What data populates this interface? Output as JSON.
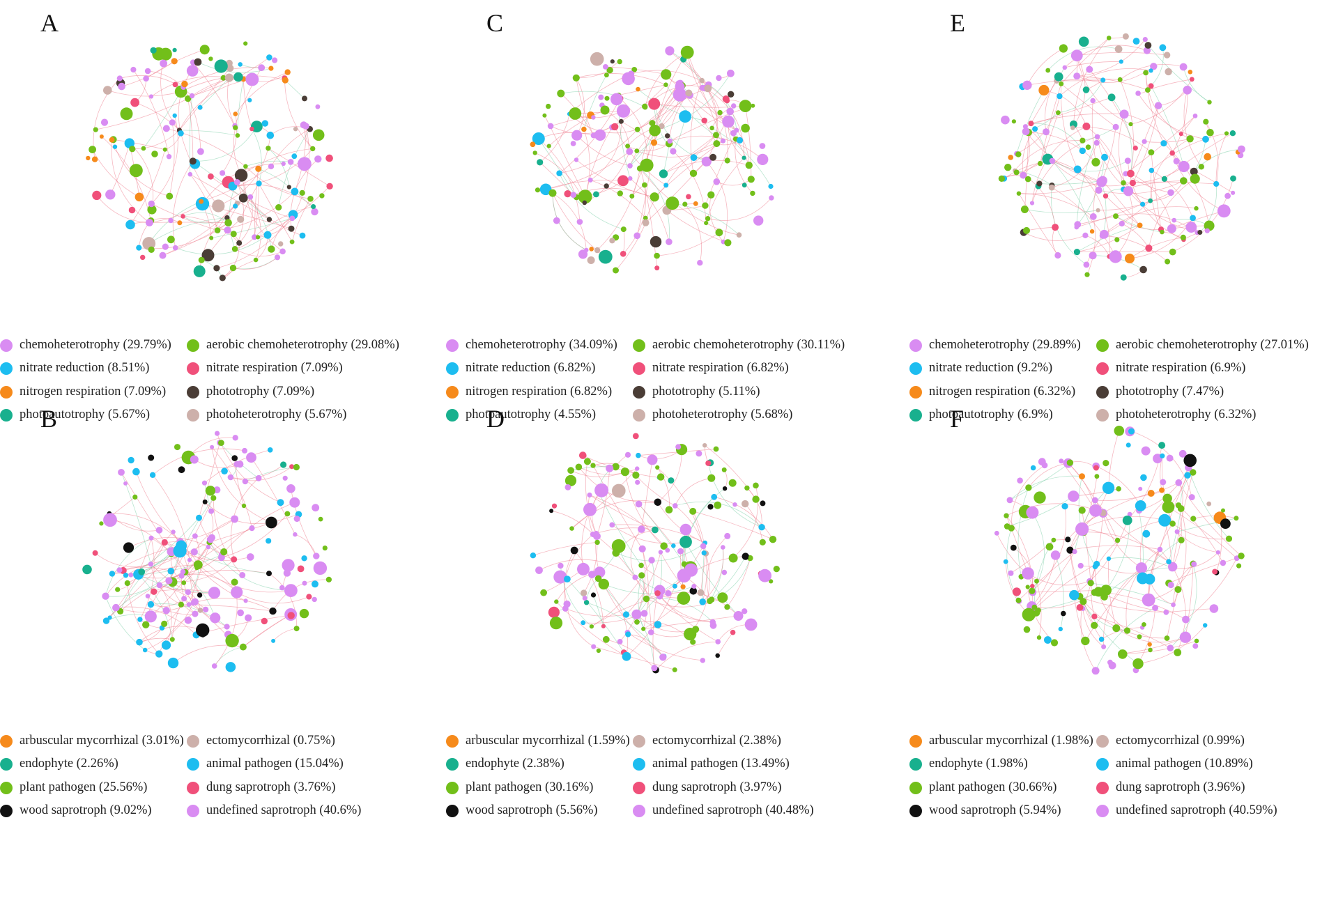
{
  "figure": {
    "colors": {
      "edge_pos": "#ee7d8e",
      "edge_neg": "#7fcfaa"
    },
    "panels": [
      {
        "id": "A",
        "letter": "A",
        "seed": 11,
        "legend": [
          {
            "label": "chemoheterotrophy (29.79%)",
            "color": "#d98cf2",
            "share": 29.79
          },
          {
            "label": "aerobic chemoheterotrophy (29.08%)",
            "color": "#72bf1a",
            "share": 29.08
          },
          {
            "label": "nitrate reduction (8.51%)",
            "color": "#1dbdf0",
            "share": 8.51
          },
          {
            "label": "nitrate respiration (7.09%)",
            "color": "#f0507a",
            "share": 7.09
          },
          {
            "label": "nitrogen respiration (7.09%)",
            "color": "#f68a1b",
            "share": 7.09
          },
          {
            "label": "phototrophy (7.09%)",
            "color": "#4a3d36",
            "share": 7.09
          },
          {
            "label": "photoautotrophy (5.67%)",
            "color": "#18b08e",
            "share": 5.67
          },
          {
            "label": "photoheterotrophy (5.67%)",
            "color": "#cdb0aa",
            "share": 5.67
          }
        ]
      },
      {
        "id": "C",
        "letter": "C",
        "seed": 23,
        "legend": [
          {
            "label": "chemoheterotrophy (34.09%)",
            "color": "#d98cf2",
            "share": 34.09
          },
          {
            "label": "aerobic chemoheterotrophy (30.11%)",
            "color": "#72bf1a",
            "share": 30.11
          },
          {
            "label": "nitrate reduction (6.82%)",
            "color": "#1dbdf0",
            "share": 6.82
          },
          {
            "label": "nitrate respiration (6.82%)",
            "color": "#f0507a",
            "share": 6.82
          },
          {
            "label": "nitrogen respiration (6.82%)",
            "color": "#f68a1b",
            "share": 6.82
          },
          {
            "label": "phototrophy (5.11%)",
            "color": "#4a3d36",
            "share": 5.11
          },
          {
            "label": "photoautotrophy (4.55%)",
            "color": "#18b08e",
            "share": 4.55
          },
          {
            "label": "photoheterotrophy (5.68%)",
            "color": "#cdb0aa",
            "share": 5.68
          }
        ]
      },
      {
        "id": "E",
        "letter": "E",
        "seed": 37,
        "legend": [
          {
            "label": "chemoheterotrophy (29.89%)",
            "color": "#d98cf2",
            "share": 29.89
          },
          {
            "label": "aerobic chemoheterotrophy (27.01%)",
            "color": "#72bf1a",
            "share": 27.01
          },
          {
            "label": "nitrate reduction (9.2%)",
            "color": "#1dbdf0",
            "share": 9.2
          },
          {
            "label": "nitrate respiration (6.9%)",
            "color": "#f0507a",
            "share": 6.9
          },
          {
            "label": "nitrogen respiration (6.32%)",
            "color": "#f68a1b",
            "share": 6.32
          },
          {
            "label": "phototrophy (7.47%)",
            "color": "#4a3d36",
            "share": 7.47
          },
          {
            "label": "photoautotrophy (6.9%)",
            "color": "#18b08e",
            "share": 6.9
          },
          {
            "label": "photoheterotrophy (6.32%)",
            "color": "#cdb0aa",
            "share": 6.32
          }
        ]
      },
      {
        "id": "B",
        "letter": "B",
        "seed": 41,
        "legend": [
          {
            "label": "arbuscular mycorrhizal  (3.01%)",
            "color": "#f68a1b",
            "share": 3.01
          },
          {
            "label": "ectomycorrhizal (0.75%)",
            "color": "#cdb0aa",
            "share": 0.75
          },
          {
            "label": "endophyte (2.26%)",
            "color": "#18b08e",
            "share": 2.26
          },
          {
            "label": "animal pathogen (15.04%)",
            "color": "#1dbdf0",
            "share": 15.04
          },
          {
            "label": "plant pathogen (25.56%)",
            "color": "#72bf1a",
            "share": 25.56
          },
          {
            "label": "dung saprotroph (3.76%)",
            "color": "#f0507a",
            "share": 3.76
          },
          {
            "label": "wood saprotroph (9.02%)",
            "color": "#111111",
            "share": 9.02
          },
          {
            "label": "undefined saprotroph (40.6%)",
            "color": "#d98cf2",
            "share": 40.6
          }
        ]
      },
      {
        "id": "D",
        "letter": "D",
        "seed": 53,
        "legend": [
          {
            "label": "arbuscular mycorrhizal  (1.59%)",
            "color": "#f68a1b",
            "share": 1.59
          },
          {
            "label": "ectomycorrhizal (2.38%)",
            "color": "#cdb0aa",
            "share": 2.38
          },
          {
            "label": "endophyte (2.38%)",
            "color": "#18b08e",
            "share": 2.38
          },
          {
            "label": "animal pathogen (13.49%)",
            "color": "#1dbdf0",
            "share": 13.49
          },
          {
            "label": "plant pathogen (30.16%)",
            "color": "#72bf1a",
            "share": 30.16
          },
          {
            "label": "dung saprotroph (3.97%)",
            "color": "#f0507a",
            "share": 3.97
          },
          {
            "label": "wood saprotroph (5.56%)",
            "color": "#111111",
            "share": 5.56
          },
          {
            "label": "undefined saprotroph (40.48%)",
            "color": "#d98cf2",
            "share": 40.48
          }
        ]
      },
      {
        "id": "F",
        "letter": "F",
        "seed": 67,
        "legend": [
          {
            "label": "arbuscular mycorrhizal  (1.98%)",
            "color": "#f68a1b",
            "share": 1.98
          },
          {
            "label": "ectomycorrhizal (0.99%)",
            "color": "#cdb0aa",
            "share": 0.99
          },
          {
            "label": "endophyte (1.98%)",
            "color": "#18b08e",
            "share": 1.98
          },
          {
            "label": "animal pathogen (10.89%)",
            "color": "#1dbdf0",
            "share": 10.89
          },
          {
            "label": "plant pathogen (30.66%)",
            "color": "#72bf1a",
            "share": 30.66
          },
          {
            "label": "dung saprotroph (3.96%)",
            "color": "#f0507a",
            "share": 3.96
          },
          {
            "label": "wood saprotroph (5.94%)",
            "color": "#111111",
            "share": 5.94
          },
          {
            "label": "undefined saprotroph (40.59%)",
            "color": "#d98cf2",
            "share": 40.59
          }
        ]
      }
    ]
  }
}
